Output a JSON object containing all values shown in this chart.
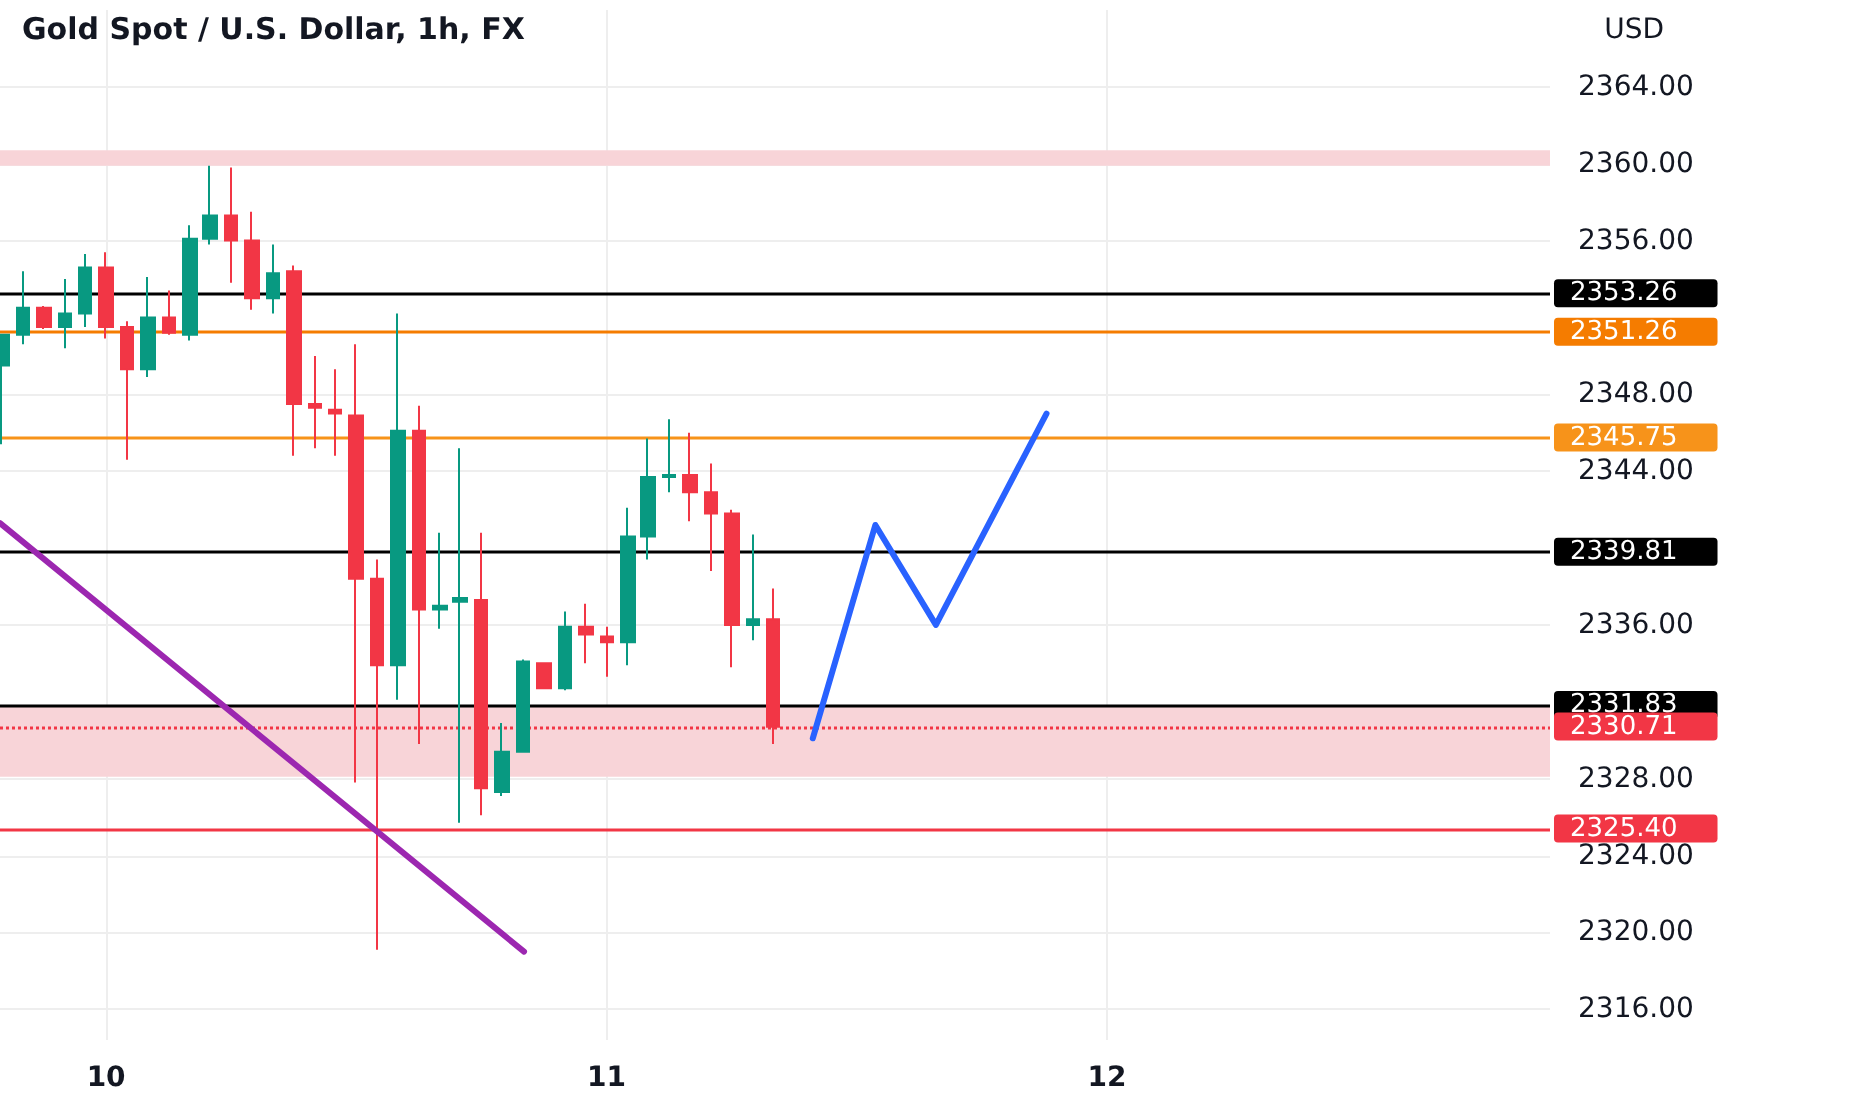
{
  "chart_data": {
    "type": "candlestick",
    "title": "Gold Spot / U.S. Dollar, 1h, FX",
    "ylabel": "USD",
    "x": [
      9.792,
      9.833,
      9.875,
      9.917,
      9.958,
      10.0,
      10.042,
      10.083,
      10.125,
      10.167,
      10.208,
      10.25,
      10.292,
      10.333,
      10.375,
      10.417,
      10.458,
      10.5,
      10.542,
      10.583,
      10.625,
      10.667,
      10.708,
      10.75,
      10.792,
      10.833,
      10.875,
      10.917,
      10.958,
      11.0,
      11.042,
      11.083,
      11.125,
      11.167,
      11.208,
      11.25,
      11.292,
      11.333
    ],
    "ohlc": [
      [
        2349.5,
        2351.1,
        2345.4,
        2351.1
      ],
      [
        2351.1,
        2354.4,
        2350.6,
        2352.5
      ],
      [
        2352.5,
        2352.6,
        2351.4,
        2351.5
      ],
      [
        2351.5,
        2354.0,
        2350.4,
        2352.2
      ],
      [
        2352.2,
        2355.3,
        2351.5,
        2354.6
      ],
      [
        2354.6,
        2355.4,
        2350.9,
        2351.5
      ],
      [
        2351.5,
        2351.8,
        2344.6,
        2349.3
      ],
      [
        2349.3,
        2354.1,
        2348.9,
        2352.0
      ],
      [
        2352.0,
        2353.4,
        2351.1,
        2351.2
      ],
      [
        2351.1,
        2356.8,
        2350.8,
        2356.1
      ],
      [
        2356.1,
        2359.9,
        2355.8,
        2357.3
      ],
      [
        2357.3,
        2359.8,
        2353.8,
        2356.0
      ],
      [
        2356.0,
        2357.5,
        2352.4,
        2353.0
      ],
      [
        2353.0,
        2355.8,
        2352.2,
        2354.3
      ],
      [
        2354.4,
        2354.7,
        2344.8,
        2347.5
      ],
      [
        2347.5,
        2350.0,
        2345.2,
        2347.3
      ],
      [
        2347.2,
        2349.3,
        2344.8,
        2347.0
      ],
      [
        2346.9,
        2350.6,
        2327.8,
        2338.4
      ],
      [
        2338.4,
        2339.4,
        2319.1,
        2333.9
      ],
      [
        2333.9,
        2352.2,
        2332.1,
        2346.1
      ],
      [
        2346.1,
        2347.4,
        2329.8,
        2336.8
      ],
      [
        2336.8,
        2340.8,
        2335.8,
        2337.0
      ],
      [
        2337.2,
        2345.2,
        2325.7,
        2337.4
      ],
      [
        2337.3,
        2340.8,
        2326.1,
        2327.5
      ],
      [
        2327.3,
        2330.9,
        2327.1,
        2329.4
      ],
      [
        2329.4,
        2334.2,
        2329.4,
        2334.1
      ],
      [
        2334.0,
        2334.0,
        2332.7,
        2332.7
      ],
      [
        2332.7,
        2336.7,
        2332.6,
        2335.9
      ],
      [
        2335.9,
        2337.1,
        2334.0,
        2335.5
      ],
      [
        2335.4,
        2335.9,
        2333.3,
        2335.1
      ],
      [
        2335.1,
        2342.1,
        2333.9,
        2340.6
      ],
      [
        2340.6,
        2345.7,
        2339.4,
        2343.7
      ],
      [
        2343.7,
        2346.7,
        2342.9,
        2343.8
      ],
      [
        2343.8,
        2346.0,
        2341.4,
        2342.9
      ],
      [
        2342.9,
        2344.4,
        2338.8,
        2341.8
      ],
      [
        2341.8,
        2342.0,
        2333.8,
        2336.0
      ],
      [
        2336.0,
        2340.7,
        2335.2,
        2336.3
      ],
      [
        2336.3,
        2337.9,
        2329.8,
        2330.7
      ]
    ],
    "colors": [
      "#089981",
      "#089981",
      "#f23645",
      "#089981",
      "#089981",
      "#f23645",
      "#f23645",
      "#089981",
      "#f23645",
      "#089981",
      "#089981",
      "#f23645",
      "#f23645",
      "#089981",
      "#f23645",
      "#f23645",
      "#f23645",
      "#f23645",
      "#f23645",
      "#089981",
      "#f23645",
      "#089981",
      "#089981",
      "#f23645",
      "#089981",
      "#089981",
      "#f23645",
      "#089981",
      "#f23645",
      "#f23645",
      "#089981",
      "#089981",
      "#089981",
      "#f23645",
      "#f23645",
      "#f23645",
      "#089981",
      "#f23645"
    ],
    "series": [
      {
        "type": "line",
        "color": "#9c27b0",
        "x": [
          9.788,
          10.835
        ],
        "values": [
          2341.3,
          2319.0
        ]
      },
      {
        "type": "line",
        "color": "#2962ff",
        "x": [
          11.412,
          11.537,
          11.658,
          11.879
        ],
        "values": [
          2330.1,
          2341.2,
          2336.0,
          2347.0
        ]
      }
    ],
    "ref_lines": [
      {
        "axis": "y",
        "value": 2353.26,
        "label": "2353.26",
        "color": "#000000"
      },
      {
        "axis": "y",
        "value": 2351.26,
        "label": "2351.26",
        "color": "#f57c00"
      },
      {
        "axis": "y",
        "value": 2345.75,
        "label": "2345.75",
        "color": "#f7931a"
      },
      {
        "axis": "y",
        "value": 2339.81,
        "label": "2339.81",
        "color": "#000000"
      },
      {
        "axis": "y",
        "value": 2331.83,
        "label": "2331.83",
        "color": "#000000"
      },
      {
        "axis": "y",
        "value": 2330.71,
        "label": "2330.71",
        "color": "#f23645",
        "line_style": "dotted"
      },
      {
        "axis": "y",
        "value": 2325.4,
        "label": "2325.40",
        "color": "#f23645"
      }
    ],
    "bands": [
      {
        "axis": "y",
        "from": 2359.9,
        "to": 2360.7,
        "color": "#f8d4d8"
      },
      {
        "axis": "y",
        "from": 2328.1,
        "to": 2331.8,
        "color": "#f8d4d8"
      }
    ],
    "xlim": [
      9.788,
      12.885
    ],
    "xticks": [
      10,
      11,
      12
    ],
    "ylim": [
      2314.4,
      2368.0
    ],
    "yticks": [
      {
        "value": 2316,
        "label": "2316.00"
      },
      {
        "value": 2320,
        "label": "2320.00"
      },
      {
        "value": 2324,
        "label": "2324.00"
      },
      {
        "value": 2328,
        "label": "2328.00"
      },
      {
        "value": 2336,
        "label": "2336.00"
      },
      {
        "value": 2344,
        "label": "2344.00"
      },
      {
        "value": 2348,
        "label": "2348.00"
      },
      {
        "value": 2356,
        "label": "2356.00"
      },
      {
        "value": 2360,
        "label": "2360.00"
      },
      {
        "value": 2364,
        "label": "2364.00"
      }
    ],
    "grid": true
  }
}
